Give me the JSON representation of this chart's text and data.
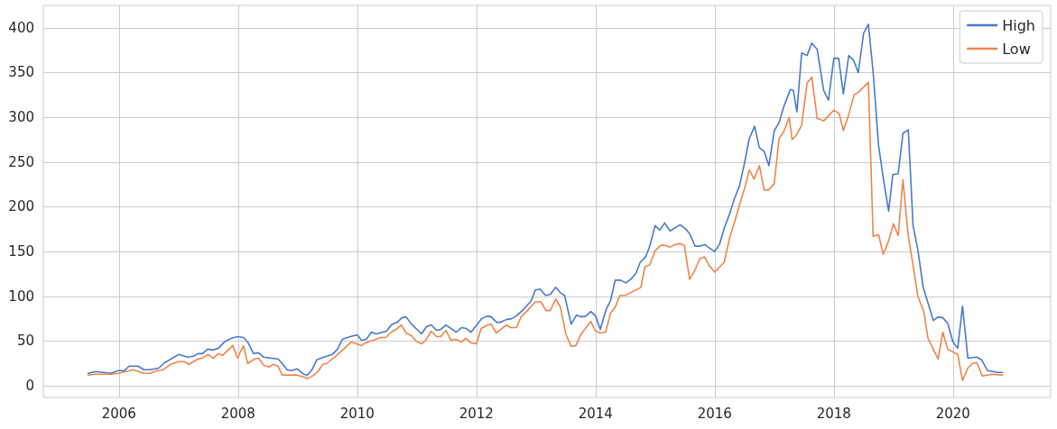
{
  "chart_data": {
    "type": "line",
    "xlim": [
      2004.73,
      2021.64
    ],
    "xticks": [
      2006,
      2008,
      2010,
      2012,
      2014,
      2016,
      2018,
      2020
    ],
    "ylim": [
      -13,
      425
    ],
    "yticks": [
      0,
      50,
      100,
      150,
      200,
      250,
      300,
      350,
      400
    ],
    "grid": true,
    "legend": "top right",
    "marker": "none",
    "line_style": "solid",
    "series": [
      {
        "name": "High",
        "color": "#4878d0",
        "x": [
          2005.48,
          2005.61,
          2005.74,
          2005.86,
          2005.99,
          2006.09,
          2006.17,
          2006.32,
          2006.42,
          2006.52,
          2006.6,
          2006.67,
          2006.77,
          2006.85,
          2007.0,
          2007.15,
          2007.25,
          2007.33,
          2007.4,
          2007.49,
          2007.58,
          2007.67,
          2007.77,
          2007.88,
          2007.99,
          2008.09,
          2008.16,
          2008.26,
          2008.34,
          2008.43,
          2008.53,
          2008.67,
          2008.74,
          2008.82,
          2008.89,
          2008.99,
          2009.1,
          2009.16,
          2009.24,
          2009.32,
          2009.44,
          2009.58,
          2009.67,
          2009.75,
          2009.88,
          2010.0,
          2010.07,
          2010.15,
          2010.24,
          2010.32,
          2010.49,
          2010.57,
          2010.67,
          2010.75,
          2010.82,
          2010.91,
          2011.08,
          2011.16,
          2011.24,
          2011.33,
          2011.4,
          2011.49,
          2011.66,
          2011.75,
          2011.83,
          2011.91,
          2012.09,
          2012.18,
          2012.25,
          2012.34,
          2012.41,
          2012.5,
          2012.59,
          2012.67,
          2012.77,
          2012.92,
          2012.99,
          2013.07,
          2013.16,
          2013.24,
          2013.33,
          2013.41,
          2013.48,
          2013.59,
          2013.68,
          2013.76,
          2013.84,
          2013.92,
          2014.0,
          2014.08,
          2014.17,
          2014.25,
          2014.33,
          2014.42,
          2014.51,
          2014.59,
          2014.68,
          2014.75,
          2014.84,
          2014.91,
          2015.0,
          2015.08,
          2015.16,
          2015.25,
          2015.42,
          2015.5,
          2015.58,
          2015.67,
          2015.75,
          2015.83,
          2015.91,
          2016.0,
          2016.08,
          2016.16,
          2016.25,
          2016.33,
          2016.42,
          2016.5,
          2016.58,
          2016.67,
          2016.75,
          2016.83,
          2016.91,
          2017.0,
          2017.08,
          2017.16,
          2017.27,
          2017.32,
          2017.38,
          2017.46,
          2017.55,
          2017.63,
          2017.72,
          2017.83,
          2017.91,
          2018.0,
          2018.08,
          2018.16,
          2018.25,
          2018.33,
          2018.41,
          2018.5,
          2018.58,
          2018.66,
          2018.75,
          2018.83,
          2018.92,
          2018.99,
          2019.08,
          2019.16,
          2019.25,
          2019.33,
          2019.41,
          2019.5,
          2019.67,
          2019.75,
          2019.83,
          2019.91,
          2020.0,
          2020.08,
          2020.16,
          2020.25,
          2020.4,
          2020.48,
          2020.58,
          2020.67,
          2020.75,
          2020.83
        ],
        "values": [
          14,
          16,
          15,
          14,
          17,
          17,
          22,
          22,
          18,
          18,
          19,
          20,
          26,
          29,
          35,
          32,
          33,
          36,
          36,
          41,
          40,
          42,
          49,
          53,
          55,
          54,
          49,
          36,
          37,
          32,
          31,
          30,
          25,
          18,
          17,
          19,
          13,
          12,
          18,
          29,
          32,
          35,
          41,
          52,
          55,
          57,
          51,
          52,
          60,
          58,
          61,
          68,
          71,
          76,
          77,
          69,
          58,
          66,
          68,
          62,
          63,
          68,
          60,
          65,
          64,
          60,
          75,
          78,
          77,
          71,
          71,
          74,
          75,
          78,
          84,
          95,
          107,
          108,
          101,
          102,
          110,
          104,
          101,
          69,
          79,
          77,
          78,
          83,
          78,
          63,
          84,
          95,
          118,
          118,
          115,
          119,
          126,
          138,
          144,
          156,
          179,
          174,
          182,
          173,
          180,
          176,
          170,
          156,
          156,
          158,
          154,
          150,
          158,
          176,
          192,
          209,
          224,
          249,
          276,
          290,
          266,
          262,
          246,
          285,
          294,
          312,
          331,
          330,
          306,
          372,
          369,
          383,
          376,
          330,
          319,
          366,
          366,
          326,
          369,
          364,
          350,
          394,
          404,
          350,
          269,
          232,
          195,
          236,
          237,
          282,
          286,
          179,
          152,
          110,
          73,
          77,
          76,
          70,
          49,
          42,
          89,
          31,
          32,
          29,
          17,
          16,
          15,
          15
        ]
      },
      {
        "name": "Low",
        "color": "#ee854a",
        "x": [
          2005.48,
          2005.58,
          2005.86,
          2005.99,
          2006.24,
          2006.42,
          2006.52,
          2006.64,
          2006.74,
          2006.87,
          2007.0,
          2007.1,
          2007.17,
          2007.33,
          2007.4,
          2007.5,
          2007.58,
          2007.67,
          2007.74,
          2007.91,
          2007.99,
          2008.09,
          2008.16,
          2008.28,
          2008.34,
          2008.43,
          2008.52,
          2008.59,
          2008.67,
          2008.74,
          2008.99,
          2009.1,
          2009.17,
          2009.25,
          2009.34,
          2009.42,
          2009.49,
          2009.67,
          2009.77,
          2009.9,
          2009.99,
          2010.07,
          2010.14,
          2010.39,
          2010.48,
          2010.57,
          2010.65,
          2010.74,
          2010.82,
          2010.91,
          2010.99,
          2011.08,
          2011.15,
          2011.24,
          2011.33,
          2011.4,
          2011.49,
          2011.57,
          2011.66,
          2011.75,
          2011.82,
          2011.91,
          2012.0,
          2012.08,
          2012.16,
          2012.25,
          2012.33,
          2012.41,
          2012.5,
          2012.58,
          2012.67,
          2012.75,
          2012.84,
          2012.99,
          2013.08,
          2013.17,
          2013.24,
          2013.33,
          2013.41,
          2013.5,
          2013.59,
          2013.67,
          2013.75,
          2013.92,
          2014.0,
          2014.09,
          2014.17,
          2014.25,
          2014.33,
          2014.41,
          2014.5,
          2014.76,
          2014.83,
          2014.91,
          2015.0,
          2015.1,
          2015.16,
          2015.25,
          2015.34,
          2015.42,
          2015.49,
          2015.58,
          2015.66,
          2015.75,
          2015.83,
          2015.91,
          2016.0,
          2016.16,
          2016.25,
          2016.33,
          2016.42,
          2016.5,
          2016.58,
          2016.66,
          2016.75,
          2016.83,
          2016.91,
          2017.0,
          2017.08,
          2017.16,
          2017.25,
          2017.3,
          2017.37,
          2017.46,
          2017.55,
          2017.63,
          2017.72,
          2017.83,
          2018.0,
          2018.09,
          2018.16,
          2018.25,
          2018.34,
          2018.41,
          2018.58,
          2018.66,
          2018.75,
          2018.83,
          2018.92,
          2019.0,
          2019.08,
          2019.16,
          2019.25,
          2019.33,
          2019.41,
          2019.51,
          2019.58,
          2019.75,
          2019.83,
          2019.91,
          2020.08,
          2020.16,
          2020.25,
          2020.33,
          2020.4,
          2020.49,
          2020.66,
          2020.83
        ],
        "values": [
          12,
          13,
          13,
          14,
          18,
          14,
          14,
          17,
          18,
          24,
          27,
          27,
          24,
          30,
          31,
          35,
          31,
          36,
          34,
          45,
          31,
          45,
          25,
          30,
          31,
          23,
          21,
          24,
          22,
          12,
          12,
          10,
          8,
          11,
          16,
          24,
          25,
          35,
          41,
          49,
          47,
          45,
          48,
          54,
          54,
          60,
          63,
          68,
          59,
          56,
          50,
          47,
          51,
          61,
          55,
          55,
          62,
          51,
          52,
          49,
          53,
          48,
          47,
          64,
          67,
          69,
          59,
          63,
          68,
          65,
          65,
          77,
          83,
          94,
          94,
          84,
          84,
          97,
          88,
          58,
          44,
          45,
          57,
          72,
          61,
          59,
          60,
          81,
          88,
          101,
          101,
          110,
          133,
          135,
          151,
          157,
          157,
          155,
          158,
          159,
          157,
          119,
          128,
          142,
          144,
          134,
          127,
          138,
          165,
          182,
          203,
          220,
          241,
          231,
          246,
          219,
          219,
          226,
          276,
          284,
          300,
          275,
          280,
          291,
          338,
          345,
          299,
          296,
          308,
          304,
          285,
          303,
          325,
          328,
          339,
          167,
          169,
          147,
          162,
          181,
          168,
          230,
          167,
          135,
          100,
          83,
          53,
          30,
          60,
          41,
          35,
          6,
          20,
          25,
          26,
          11,
          13,
          12
        ]
      }
    ]
  }
}
